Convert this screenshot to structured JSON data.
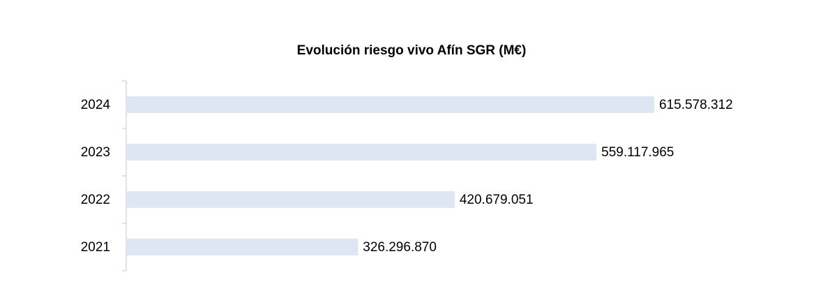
{
  "chart_data": {
    "type": "bar",
    "orientation": "horizontal",
    "title": "Evolución riesgo vivo Afín SGR (M€)",
    "categories": [
      "2024",
      "2023",
      "2022",
      "2021"
    ],
    "values": [
      615578312,
      559117965,
      420679051,
      326296870
    ],
    "value_labels": [
      "615.578.312",
      "559.117.965",
      "420.679.051",
      "326.296.870"
    ],
    "color": "#dde6f2",
    "xlim": [
      100000000,
      700000000
    ]
  }
}
